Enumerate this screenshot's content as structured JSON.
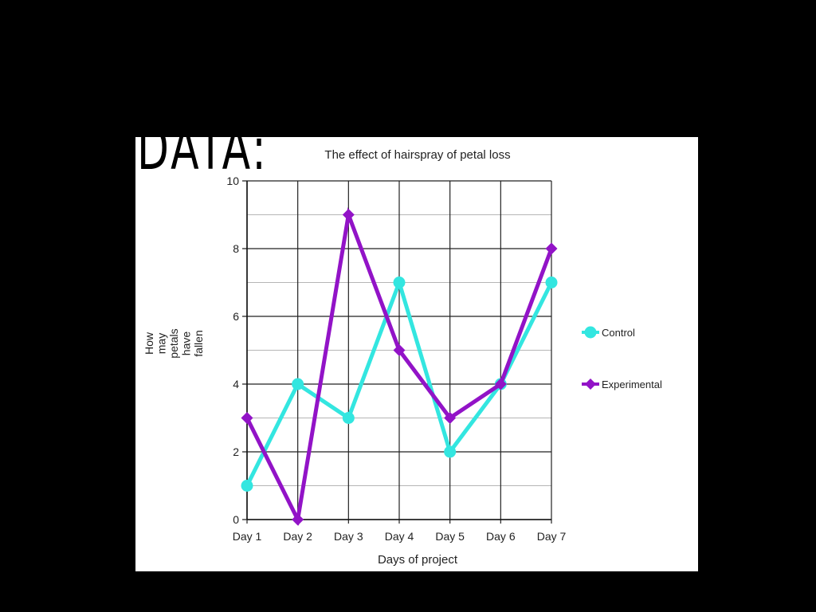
{
  "slide": {
    "heading": "DATA:"
  },
  "chart_data": {
    "type": "line",
    "title": "The effect of hairspray of petal loss",
    "xlabel": "Days of project",
    "ylabel": "How may petals have fallen",
    "ylabel_lines": [
      "How",
      "may",
      "petals",
      "have",
      "fallen"
    ],
    "categories": [
      "Day 1",
      "Day 2",
      "Day 3",
      "Day 4",
      "Day 5",
      "Day 6",
      "Day 7"
    ],
    "ylim": [
      0,
      10
    ],
    "yticks": [
      0,
      2,
      4,
      6,
      8,
      10
    ],
    "grid": true,
    "legend_position": "right",
    "series": [
      {
        "name": "Control",
        "color": "#33e6e0",
        "marker": "circle",
        "values": [
          1,
          4,
          3,
          7,
          2,
          4,
          7
        ]
      },
      {
        "name": "Experimental",
        "color": "#9213c7",
        "marker": "diamond",
        "values": [
          3,
          0,
          9,
          5,
          3,
          4,
          8
        ]
      }
    ]
  }
}
